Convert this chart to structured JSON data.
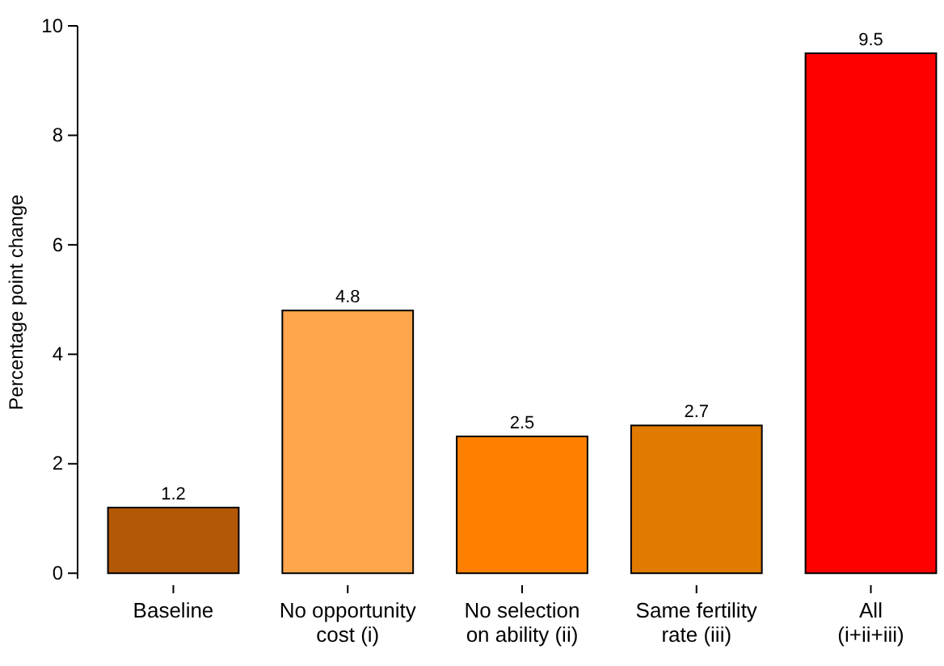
{
  "chart_data": {
    "type": "bar",
    "ylabel": "Percentage point change",
    "categories": [
      "Baseline",
      "No opportunity\ncost (i)",
      "No selection\non ability (ii)",
      "Same fertility\nrate (iii)",
      "All\n(i+ii+iii)"
    ],
    "values": [
      1.2,
      4.8,
      2.5,
      2.7,
      9.5
    ],
    "colors": [
      "#b35806",
      "#ffa64d",
      "#ff8000",
      "#e07b00",
      "#ff0000"
    ],
    "ylim": [
      -0.1,
      10
    ],
    "yticks": [
      0,
      2,
      4,
      6,
      8,
      10
    ],
    "grid": false,
    "data_labels": true
  }
}
